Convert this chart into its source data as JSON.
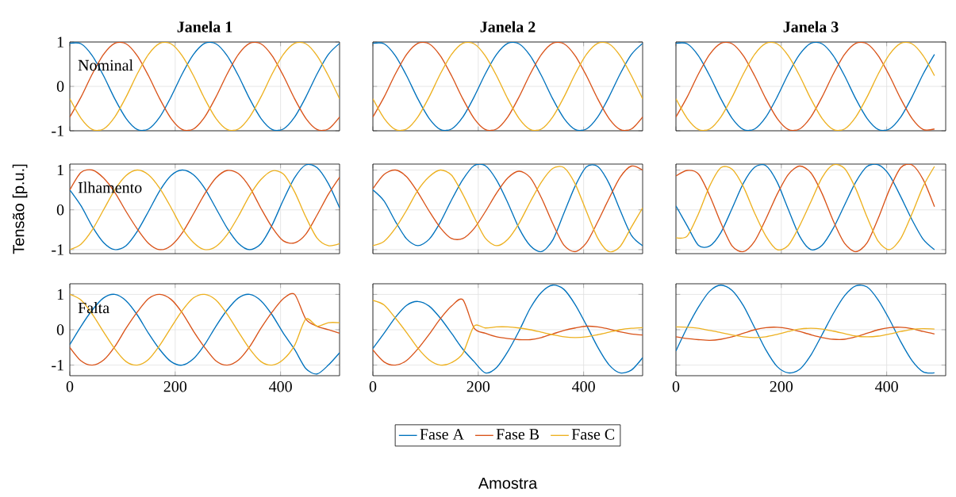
{
  "chart_data": [
    {
      "type": "line",
      "title": "Janela 1",
      "annotations": [
        "Nominal"
      ],
      "x": [
        0,
        21.3,
        42.7,
        64,
        85.3,
        106.7,
        128,
        149.3,
        170.7,
        192,
        213.3,
        234.7,
        256,
        277.3,
        298.7,
        320,
        341.3,
        362.7,
        384,
        405.3,
        426.7,
        448,
        469.3,
        490.7,
        512
      ],
      "xlim": [
        0,
        512
      ],
      "ylim": [
        -1,
        1
      ],
      "xticks": [
        0,
        200,
        400
      ],
      "yticks": [
        -1,
        0,
        1
      ],
      "grid": true,
      "tick_labels": "y",
      "series": [
        {
          "color": "#0072bd",
          "values": [
            0.97,
            0.96,
            0.69,
            0.24,
            -0.28,
            -0.72,
            -0.97,
            -0.96,
            -0.69,
            -0.24,
            0.28,
            0.72,
            0.97,
            0.96,
            0.69,
            0.24,
            -0.28,
            -0.72,
            -0.97,
            -0.96,
            -0.69,
            -0.24,
            0.28,
            0.72,
            0.97
          ]
        },
        {
          "color": "#d95319",
          "values": [
            -0.69,
            -0.24,
            0.28,
            0.72,
            0.97,
            0.96,
            0.69,
            0.24,
            -0.28,
            -0.72,
            -0.97,
            -0.96,
            -0.69,
            -0.24,
            0.28,
            0.72,
            0.97,
            0.96,
            0.69,
            0.24,
            -0.28,
            -0.72,
            -0.97,
            -0.96,
            -0.69
          ]
        },
        {
          "color": "#edb120",
          "values": [
            -0.28,
            -0.72,
            -0.97,
            -0.96,
            -0.69,
            -0.24,
            0.28,
            0.72,
            0.97,
            0.96,
            0.69,
            0.24,
            -0.28,
            -0.72,
            -0.97,
            -0.96,
            -0.69,
            -0.24,
            0.28,
            0.72,
            0.97,
            0.96,
            0.69,
            0.24,
            -0.28
          ]
        }
      ]
    },
    {
      "type": "line",
      "title": "Janela 2",
      "x": [
        0,
        21.3,
        42.7,
        64,
        85.3,
        106.7,
        128,
        149.3,
        170.7,
        192,
        213.3,
        234.7,
        256,
        277.3,
        298.7,
        320,
        341.3,
        362.7,
        384,
        405.3,
        426.7,
        448,
        469.3,
        490.7,
        512
      ],
      "xlim": [
        0,
        512
      ],
      "ylim": [
        -1,
        1
      ],
      "xticks": [
        0,
        200,
        400
      ],
      "yticks": [
        -1,
        0,
        1
      ],
      "grid": true,
      "tick_labels": false,
      "series": [
        {
          "color": "#0072bd",
          "values": [
            0.97,
            0.96,
            0.69,
            0.24,
            -0.28,
            -0.72,
            -0.97,
            -0.96,
            -0.69,
            -0.24,
            0.28,
            0.72,
            0.97,
            0.96,
            0.69,
            0.24,
            -0.28,
            -0.72,
            -0.97,
            -0.96,
            -0.69,
            -0.24,
            0.28,
            0.72,
            0.97
          ]
        },
        {
          "color": "#d95319",
          "values": [
            -0.69,
            -0.24,
            0.28,
            0.72,
            0.97,
            0.96,
            0.69,
            0.24,
            -0.28,
            -0.72,
            -0.97,
            -0.96,
            -0.69,
            -0.24,
            0.28,
            0.72,
            0.97,
            0.96,
            0.69,
            0.24,
            -0.28,
            -0.72,
            -0.97,
            -0.96,
            -0.69
          ]
        },
        {
          "color": "#edb120",
          "values": [
            -0.28,
            -0.72,
            -0.97,
            -0.96,
            -0.69,
            -0.24,
            0.28,
            0.72,
            0.97,
            0.96,
            0.69,
            0.24,
            -0.28,
            -0.72,
            -0.97,
            -0.96,
            -0.69,
            -0.24,
            0.28,
            0.72,
            0.97,
            0.96,
            0.69,
            0.24,
            -0.28
          ]
        }
      ]
    },
    {
      "type": "line",
      "title": "Janela 3",
      "x": [
        0,
        21.3,
        42.7,
        64,
        85.3,
        106.7,
        128,
        149.3,
        170.7,
        192,
        213.3,
        234.7,
        256,
        277.3,
        298.7,
        320,
        341.3,
        362.7,
        384,
        405.3,
        426.7,
        448,
        469.3,
        490.7
      ],
      "xlim": [
        0,
        512
      ],
      "ylim": [
        -1,
        1
      ],
      "xticks": [
        0,
        200,
        400
      ],
      "yticks": [
        -1,
        0,
        1
      ],
      "grid": true,
      "tick_labels": false,
      "series": [
        {
          "color": "#0072bd",
          "values": [
            0.97,
            0.96,
            0.69,
            0.24,
            -0.28,
            -0.72,
            -0.97,
            -0.96,
            -0.69,
            -0.24,
            0.28,
            0.72,
            0.97,
            0.96,
            0.69,
            0.24,
            -0.28,
            -0.72,
            -0.97,
            -0.96,
            -0.69,
            -0.24,
            0.28,
            0.72
          ]
        },
        {
          "color": "#d95319",
          "values": [
            -0.69,
            -0.24,
            0.28,
            0.72,
            0.97,
            0.96,
            0.69,
            0.24,
            -0.28,
            -0.72,
            -0.97,
            -0.96,
            -0.69,
            -0.24,
            0.28,
            0.72,
            0.97,
            0.96,
            0.69,
            0.24,
            -0.28,
            -0.72,
            -0.97,
            -0.96
          ]
        },
        {
          "color": "#edb120",
          "values": [
            -0.28,
            -0.72,
            -0.97,
            -0.96,
            -0.69,
            -0.24,
            0.28,
            0.72,
            0.97,
            0.96,
            0.69,
            0.24,
            -0.28,
            -0.72,
            -0.97,
            -0.96,
            -0.69,
            -0.24,
            0.28,
            0.72,
            0.97,
            0.96,
            0.69,
            0.24
          ]
        }
      ]
    },
    {
      "type": "line",
      "ylabel": "Tensão [p.u.]",
      "annotations": [
        "Ilhamento"
      ],
      "x": [
        0,
        21.3,
        42.7,
        64,
        85.3,
        106.7,
        128,
        149.3,
        170.7,
        192,
        213.3,
        234.7,
        256,
        277.3,
        298.7,
        320,
        341.3,
        362.7,
        384,
        405.3,
        426.7,
        448,
        469.3,
        490.7,
        512
      ],
      "xlim": [
        0,
        512
      ],
      "ylim": [
        -1.1,
        1.15
      ],
      "xticks": [
        0,
        200,
        400
      ],
      "yticks": [
        -1,
        0,
        1
      ],
      "grid": true,
      "tick_labels": "y",
      "series": [
        {
          "color": "#0072bd",
          "values": [
            0.5,
            0.1,
            -0.42,
            -0.82,
            -1.0,
            -0.9,
            -0.54,
            -0.04,
            0.48,
            0.86,
            1.0,
            0.88,
            0.54,
            0.04,
            -0.46,
            -0.84,
            -1.0,
            -0.85,
            -0.38,
            0.25,
            0.81,
            1.13,
            1.06,
            0.66,
            0.05
          ]
        },
        {
          "color": "#d95319",
          "values": [
            0.5,
            0.94,
            1.0,
            0.8,
            0.44,
            -0.04,
            -0.48,
            -0.84,
            -1.0,
            -0.9,
            -0.58,
            -0.1,
            0.4,
            0.8,
            0.99,
            0.91,
            0.57,
            0.04,
            -0.44,
            -0.78,
            -0.83,
            -0.61,
            -0.13,
            0.39,
            0.82
          ]
        },
        {
          "color": "#edb120",
          "values": [
            -1.0,
            -0.86,
            -0.5,
            0.0,
            0.5,
            0.86,
            1.0,
            0.88,
            0.54,
            0.06,
            -0.46,
            -0.82,
            -1.0,
            -0.92,
            -0.62,
            -0.16,
            0.36,
            0.76,
            0.98,
            0.9,
            0.45,
            -0.18,
            -0.71,
            -0.9,
            -0.85
          ]
        }
      ]
    },
    {
      "type": "line",
      "x": [
        0,
        21.3,
        42.7,
        64,
        85.3,
        106.7,
        128,
        149.3,
        170.7,
        192,
        213.3,
        234.7,
        256,
        277.3,
        298.7,
        320,
        341.3,
        362.7,
        384,
        405.3,
        426.7,
        448,
        469.3,
        490.7,
        512
      ],
      "xlim": [
        0,
        512
      ],
      "ylim": [
        -1.1,
        1.15
      ],
      "xticks": [
        0,
        200,
        400
      ],
      "yticks": [
        -1,
        0,
        1
      ],
      "grid": true,
      "tick_labels": false,
      "series": [
        {
          "color": "#0072bd",
          "values": [
            0.5,
            0.22,
            -0.29,
            -0.73,
            -0.9,
            -0.74,
            -0.31,
            0.25,
            0.76,
            1.11,
            1.11,
            0.75,
            0.18,
            -0.46,
            -0.9,
            -1.05,
            -0.76,
            -0.08,
            0.6,
            1.08,
            1.09,
            0.67,
            -0.01,
            -0.64,
            -0.9
          ]
        },
        {
          "color": "#d95319",
          "values": [
            0.53,
            0.89,
            1.0,
            0.83,
            0.44,
            -0.03,
            -0.45,
            -0.72,
            -0.72,
            -0.47,
            -0.05,
            0.42,
            0.8,
            0.97,
            0.81,
            0.3,
            -0.34,
            -0.89,
            -1.05,
            -0.83,
            -0.3,
            0.28,
            0.82,
            1.1,
            1.0
          ]
        },
        {
          "color": "#edb120",
          "values": [
            -0.9,
            -0.79,
            -0.46,
            -0.01,
            0.49,
            0.83,
            1.0,
            0.87,
            0.39,
            -0.18,
            -0.71,
            -0.9,
            -0.74,
            -0.34,
            0.2,
            0.7,
            1.04,
            1.06,
            0.65,
            -0.04,
            -0.71,
            -1.05,
            -0.92,
            -0.43,
            0.05
          ]
        }
      ]
    },
    {
      "type": "line",
      "x": [
        0,
        21.3,
        42.7,
        64,
        85.3,
        106.7,
        128,
        149.3,
        170.7,
        192,
        213.3,
        234.7,
        256,
        277.3,
        298.7,
        320,
        341.3,
        362.7,
        384,
        405.3,
        426.7,
        448,
        469.3,
        490.7
      ],
      "xlim": [
        0,
        512
      ],
      "ylim": [
        -1.1,
        1.15
      ],
      "xticks": [
        0,
        200,
        400
      ],
      "yticks": [
        -1,
        0,
        1
      ],
      "grid": true,
      "tick_labels": false,
      "series": [
        {
          "color": "#0072bd",
          "values": [
            0.1,
            -0.4,
            -0.89,
            -0.91,
            -0.57,
            0.04,
            0.67,
            1.07,
            1.11,
            0.7,
            0.01,
            -0.66,
            -1.0,
            -0.89,
            -0.46,
            0.12,
            0.7,
            1.09,
            1.13,
            0.87,
            0.33,
            -0.25,
            -0.74,
            -1.0
          ]
        },
        {
          "color": "#d95319",
          "values": [
            0.85,
            0.99,
            0.9,
            0.36,
            -0.33,
            -0.91,
            -1.05,
            -0.79,
            -0.23,
            0.39,
            0.89,
            1.1,
            0.93,
            0.41,
            -0.28,
            -0.84,
            -1.05,
            -0.83,
            -0.21,
            0.51,
            1.06,
            1.13,
            0.76,
            0.08
          ]
        },
        {
          "color": "#edb120",
          "values": [
            -0.7,
            -0.66,
            -0.1,
            0.6,
            1.06,
            1.02,
            0.58,
            -0.08,
            -0.66,
            -1.0,
            -0.89,
            -0.4,
            0.2,
            0.81,
            1.13,
            1.04,
            0.53,
            -0.18,
            -0.79,
            -1.0,
            -0.72,
            -0.1,
            0.59,
            1.09
          ]
        }
      ]
    },
    {
      "type": "line",
      "annotations": [
        "Falta"
      ],
      "x": [
        0,
        21.3,
        42.7,
        64,
        85.3,
        106.7,
        128,
        149.3,
        170.7,
        192,
        213.3,
        234.7,
        256,
        277.3,
        298.7,
        320,
        341.3,
        362.7,
        384,
        405.3,
        426.7,
        448,
        469.3,
        490.7,
        512
      ],
      "xlim": [
        0,
        512
      ],
      "ylim": [
        -1.3,
        1.3
      ],
      "xticks": [
        0,
        200,
        400
      ],
      "yticks": [
        -1,
        0,
        1
      ],
      "grid": true,
      "series": [
        {
          "color": "#0072bd",
          "values": [
            -0.42,
            0.1,
            0.56,
            0.9,
            1.0,
            0.82,
            0.42,
            -0.1,
            -0.56,
            -0.9,
            -1.0,
            -0.82,
            -0.42,
            0.1,
            0.56,
            0.9,
            1.0,
            0.82,
            0.42,
            -0.1,
            -0.56,
            -1.1,
            -1.25,
            -1.0,
            -0.65
          ]
        },
        {
          "color": "#d95319",
          "values": [
            -0.5,
            -0.88,
            -1.0,
            -0.86,
            -0.48,
            0.04,
            0.5,
            0.88,
            1.0,
            0.86,
            0.48,
            -0.04,
            -0.5,
            -0.88,
            -1.0,
            -0.86,
            -0.48,
            0.04,
            0.5,
            0.88,
            1.0,
            0.3,
            0.1,
            0.0,
            -0.1
          ]
        },
        {
          "color": "#edb120",
          "values": [
            1.0,
            0.84,
            0.44,
            -0.06,
            -0.54,
            -0.9,
            -1.0,
            -0.84,
            -0.44,
            0.06,
            0.54,
            0.9,
            1.0,
            0.84,
            0.44,
            -0.06,
            -0.54,
            -0.9,
            -1.0,
            -0.84,
            -0.44,
            0.3,
            0.1,
            0.2,
            0.2
          ]
        }
      ]
    },
    {
      "type": "line",
      "xlabel": "Amostra",
      "legend": "bottom",
      "x": [
        0,
        21.3,
        42.7,
        64,
        85.3,
        106.7,
        128,
        149.3,
        170.7,
        192,
        213.3,
        234.7,
        256,
        277.3,
        298.7,
        320,
        341.3,
        362.7,
        384,
        405.3,
        426.7,
        448,
        469.3,
        490.7,
        512
      ],
      "xlim": [
        0,
        512
      ],
      "ylim": [
        -1.3,
        1.3
      ],
      "xticks": [
        0,
        200,
        400
      ],
      "yticks": [
        -1,
        0,
        1
      ],
      "grid": true,
      "tick_labels": "x",
      "series": [
        {
          "name": "Fase A",
          "color": "#0072bd",
          "values": [
            -0.53,
            -0.1,
            0.35,
            0.69,
            0.8,
            0.67,
            0.33,
            -0.1,
            -0.55,
            -0.9,
            -1.22,
            -1.07,
            -0.62,
            -0.04,
            0.61,
            1.06,
            1.26,
            1.14,
            0.71,
            0.13,
            -0.49,
            -0.99,
            -1.22,
            -1.14,
            -0.79
          ]
        },
        {
          "name": "Fase B",
          "color": "#d95319",
          "values": [
            -0.57,
            -0.91,
            -1.0,
            -0.87,
            -0.54,
            -0.13,
            0.31,
            0.67,
            0.85,
            0.05,
            -0.1,
            -0.2,
            -0.25,
            -0.28,
            -0.28,
            -0.22,
            -0.12,
            -0.02,
            0.05,
            0.1,
            0.08,
            0.02,
            -0.06,
            -0.12,
            -0.15
          ]
        },
        {
          "name": "Fase C",
          "color": "#edb120",
          "values": [
            0.83,
            0.7,
            0.33,
            -0.08,
            -0.52,
            -0.85,
            -1.0,
            -0.93,
            -0.67,
            0.1,
            0.05,
            0.08,
            0.08,
            0.05,
            0.0,
            -0.07,
            -0.14,
            -0.2,
            -0.22,
            -0.2,
            -0.14,
            -0.07,
            0.0,
            0.04,
            0.06
          ]
        }
      ]
    },
    {
      "type": "line",
      "x": [
        0,
        21.3,
        42.7,
        64,
        85.3,
        106.7,
        128,
        149.3,
        170.7,
        192,
        213.3,
        234.7,
        256,
        277.3,
        298.7,
        320,
        341.3,
        362.7,
        384,
        405.3,
        426.7,
        448,
        469.3,
        490.7
      ],
      "xlim": [
        0,
        512
      ],
      "ylim": [
        -1.3,
        1.3
      ],
      "xticks": [
        0,
        200,
        400
      ],
      "yticks": [
        -1,
        0,
        1
      ],
      "grid": true,
      "tick_labels": "x",
      "series": [
        {
          "color": "#0072bd",
          "values": [
            -0.6,
            0.06,
            0.64,
            1.09,
            1.26,
            1.11,
            0.68,
            0.06,
            -0.57,
            -1.04,
            -1.22,
            -1.12,
            -0.72,
            -0.14,
            0.46,
            0.96,
            1.24,
            1.21,
            0.84,
            0.29,
            -0.34,
            -0.87,
            -1.19,
            -1.22
          ]
        },
        {
          "color": "#d95319",
          "values": [
            -0.2,
            -0.25,
            -0.28,
            -0.3,
            -0.27,
            -0.2,
            -0.1,
            0.0,
            0.06,
            0.07,
            0.03,
            -0.05,
            -0.14,
            -0.22,
            -0.27,
            -0.27,
            -0.2,
            -0.1,
            0.0,
            0.06,
            0.07,
            0.03,
            -0.05,
            -0.12
          ]
        },
        {
          "color": "#edb120",
          "values": [
            0.08,
            0.07,
            0.04,
            -0.02,
            -0.08,
            -0.15,
            -0.2,
            -0.22,
            -0.2,
            -0.13,
            -0.05,
            0.02,
            0.04,
            0.02,
            -0.04,
            -0.11,
            -0.18,
            -0.2,
            -0.18,
            -0.12,
            -0.05,
            0.01,
            0.03,
            0.02
          ]
        }
      ]
    }
  ]
}
